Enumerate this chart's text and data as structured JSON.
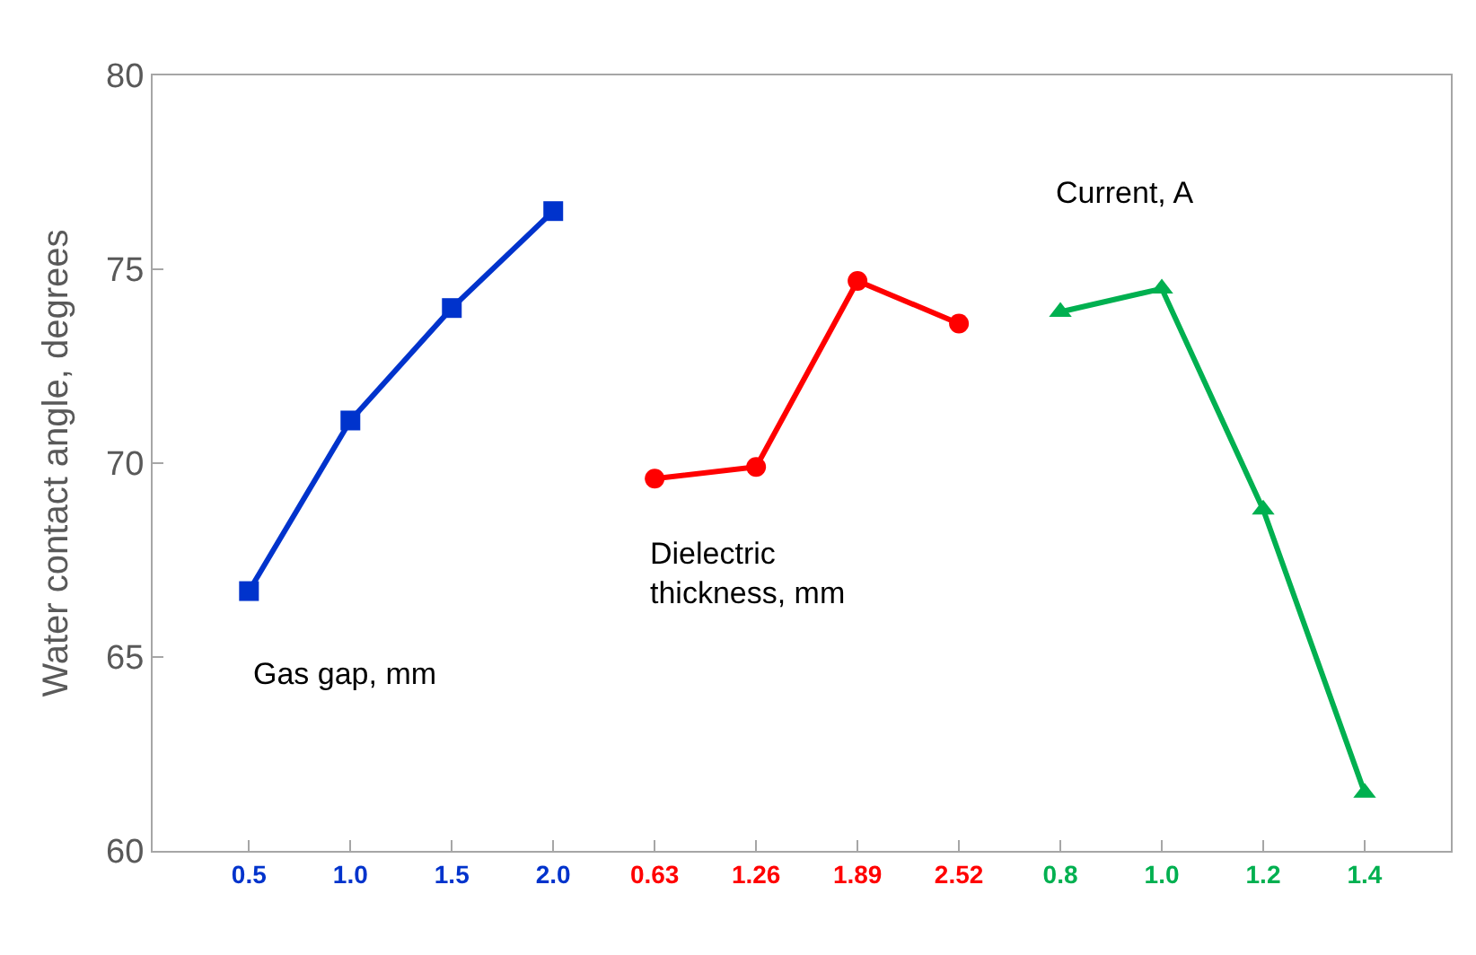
{
  "chart_data": {
    "type": "line",
    "ylabel": "Water contact angle, degrees",
    "categories": [
      "0.5",
      "1.0",
      "1.5",
      "2.0",
      "0.63",
      "1.26",
      "1.89",
      "2.52",
      "0.8",
      "1.0",
      "1.2",
      "1.4"
    ],
    "series": [
      {
        "name": "Gas gap, mm",
        "color": "#0033cc",
        "marker": "square",
        "values": [
          66.7,
          71.1,
          74.0,
          76.5,
          null,
          null,
          null,
          null,
          null,
          null,
          null,
          null
        ]
      },
      {
        "name": "Dielectric thickness, mm",
        "color": "#ff0000",
        "marker": "circle",
        "values": [
          null,
          null,
          null,
          null,
          69.6,
          69.9,
          74.7,
          73.6,
          null,
          null,
          null,
          null
        ]
      },
      {
        "name": "Current, A",
        "color": "#00b050",
        "marker": "triangle",
        "values": [
          null,
          null,
          null,
          null,
          null,
          null,
          null,
          null,
          73.9,
          74.5,
          68.8,
          61.5
        ]
      }
    ],
    "ylim": [
      60,
      80
    ],
    "yticks": [
      60,
      65,
      70,
      75,
      80
    ],
    "legend": false
  }
}
